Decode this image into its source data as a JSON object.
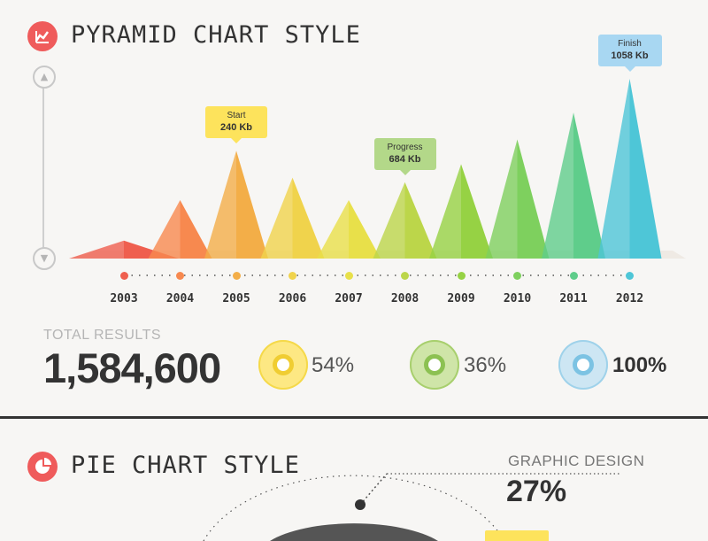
{
  "section1": {
    "title": "PYRAMID CHART STYLE",
    "icon": "line-chart-icon"
  },
  "chart_data": {
    "type": "bar",
    "categories": [
      "2003",
      "2004",
      "2005",
      "2006",
      "2007",
      "2008",
      "2009",
      "2010",
      "2011",
      "2012"
    ],
    "values": [
      40,
      130,
      240,
      180,
      130,
      170,
      210,
      265,
      325,
      400
    ],
    "colors": [
      "#ef5f4f",
      "#f7894f",
      "#f3ae48",
      "#f0d34c",
      "#e8e04a",
      "#bcd64a",
      "#96d244",
      "#7ed05e",
      "#5fcd8b",
      "#4ec6d7"
    ],
    "annotations": [
      {
        "category": "2005",
        "label": "Start",
        "value": "240",
        "unit": "Kb",
        "color": "#fde35c"
      },
      {
        "category": "2008",
        "label": "Progress",
        "value": "684",
        "unit": "Kb",
        "color": "#b3d889"
      },
      {
        "category": "2012",
        "label": "Finish",
        "value": "1058",
        "unit": "Kb",
        "color": "#a8d7f2"
      }
    ]
  },
  "thumbs": {
    "up": "thumbs-up-icon",
    "down": "thumbs-down-icon"
  },
  "totals": {
    "label": "TOTAL RESULTS",
    "value": "1,584,600"
  },
  "stats": [
    {
      "value": "54%",
      "color": "#fde883",
      "ring": "#f5d94a",
      "dot": "#f0cd32"
    },
    {
      "value": "36%",
      "color": "#cfe5a8",
      "ring": "#a8cf6e",
      "dot": "#8cc152"
    },
    {
      "value": "100%",
      "color": "#cde6f3",
      "ring": "#9fd2ea",
      "dot": "#7cc3e3"
    }
  ],
  "section2": {
    "title": "PIE CHART STYLE",
    "icon": "pie-chart-icon"
  },
  "pie_callout": {
    "label": "GRAPHIC DESIGN",
    "value": "27%"
  }
}
